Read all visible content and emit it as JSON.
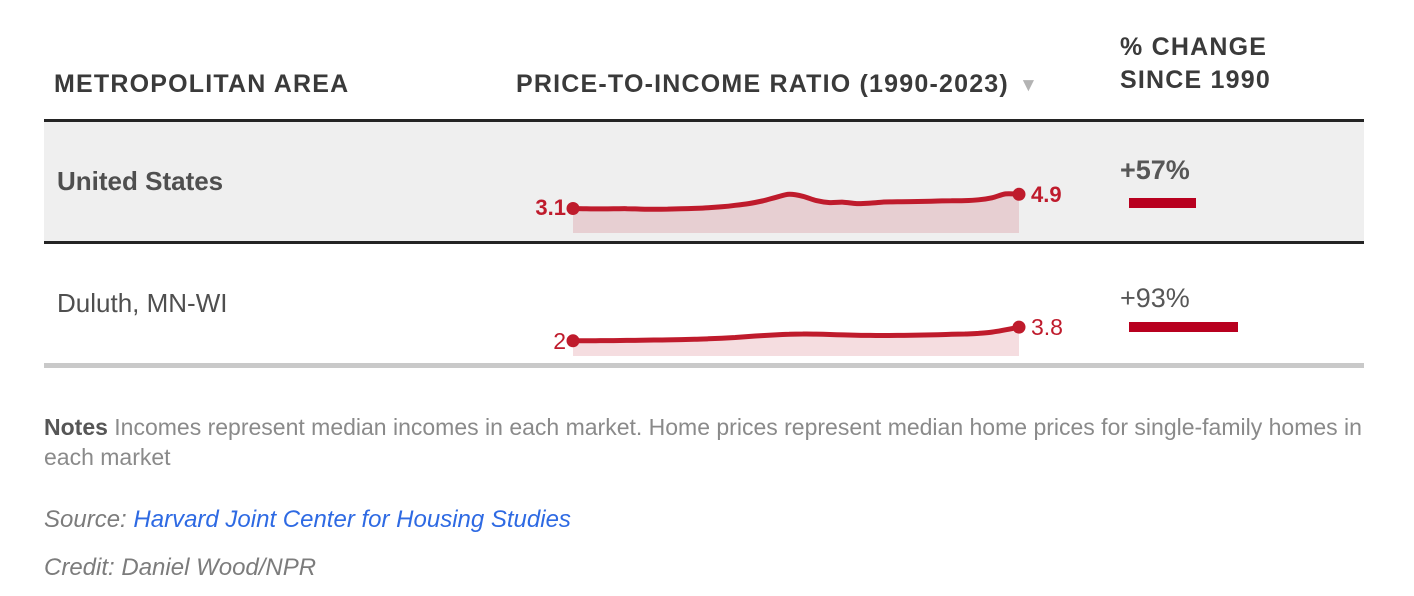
{
  "table": {
    "columns": [
      {
        "label": "METROPOLITAN AREA"
      },
      {
        "label": "PRICE-TO-INCOME RATIO (1990-2023)",
        "sort_icon": "▼"
      },
      {
        "label_line1": "% CHANGE",
        "label_line2": "SINCE 1990"
      }
    ],
    "rows": [
      {
        "metro": "United States",
        "start_label": "3.1",
        "end_label": "4.9",
        "pct_change_label": "+57%",
        "pct_change": 57,
        "emphasized": true
      },
      {
        "metro": "Duluth, MN-WI",
        "start_label": "2",
        "end_label": "3.8",
        "pct_change_label": "+93%",
        "pct_change": 93,
        "emphasized": false
      }
    ]
  },
  "chart_data": [
    {
      "type": "area",
      "title": "United States price-to-income ratio (1990-2023)",
      "x": [
        1990,
        1991,
        1992,
        1993,
        1994,
        1995,
        1996,
        1997,
        1998,
        1999,
        2000,
        2001,
        2002,
        2003,
        2004,
        2005,
        2006,
        2007,
        2008,
        2009,
        2010,
        2011,
        2012,
        2013,
        2014,
        2015,
        2016,
        2017,
        2018,
        2019,
        2020,
        2021,
        2022,
        2023
      ],
      "values": [
        3.1,
        3.07,
        3.05,
        3.06,
        3.08,
        3.02,
        3.0,
        3.03,
        3.06,
        3.12,
        3.2,
        3.32,
        3.5,
        3.72,
        4.05,
        4.5,
        4.9,
        4.65,
        4.1,
        3.85,
        3.9,
        3.72,
        3.78,
        3.92,
        3.95,
        3.98,
        4.0,
        4.05,
        4.08,
        4.1,
        4.2,
        4.45,
        4.95,
        4.9
      ],
      "start_value": 3.1,
      "end_value": 4.9,
      "ylim": [
        0,
        5.2
      ],
      "grid": false,
      "legend": "none"
    },
    {
      "type": "area",
      "title": "Duluth, MN-WI price-to-income ratio (1990-2023)",
      "x": [
        1990,
        1991,
        1992,
        1993,
        1994,
        1995,
        1996,
        1997,
        1998,
        1999,
        2000,
        2001,
        2002,
        2003,
        2004,
        2005,
        2006,
        2007,
        2008,
        2009,
        2010,
        2011,
        2012,
        2013,
        2014,
        2015,
        2016,
        2017,
        2018,
        2019,
        2020,
        2021,
        2022,
        2023
      ],
      "values": [
        2.0,
        2.0,
        2.02,
        2.03,
        2.05,
        2.07,
        2.1,
        2.12,
        2.16,
        2.2,
        2.26,
        2.34,
        2.44,
        2.56,
        2.68,
        2.78,
        2.86,
        2.9,
        2.88,
        2.83,
        2.78,
        2.74,
        2.71,
        2.7,
        2.71,
        2.73,
        2.76,
        2.8,
        2.85,
        2.9,
        2.98,
        3.15,
        3.45,
        3.8
      ],
      "start_value": 2,
      "end_value": 3.8,
      "ylim": [
        0,
        5.2
      ],
      "grid": false,
      "legend": "none"
    },
    {
      "type": "bar",
      "title": "% change since 1990",
      "categories": [
        "United States",
        "Duluth, MN-WI"
      ],
      "values": [
        57,
        93
      ],
      "xlabel": "",
      "ylabel": "% change since 1990"
    }
  ],
  "notes": {
    "label": "Notes",
    "text": " Incomes represent median incomes in each market. Home prices represent median home prices for single-family homes in each market"
  },
  "source": {
    "label": "Source: ",
    "link_text": "Harvard Joint Center for Housing Studies"
  },
  "credit": "Credit: Daniel Wood/NPR",
  "colors": {
    "accent_red": "#bf1b2c",
    "bar_red": "#b8001f",
    "row_highlight": "#efefef",
    "dark_border": "#242424",
    "light_border": "#c9c9c9",
    "link_blue": "#2e6ae3"
  }
}
